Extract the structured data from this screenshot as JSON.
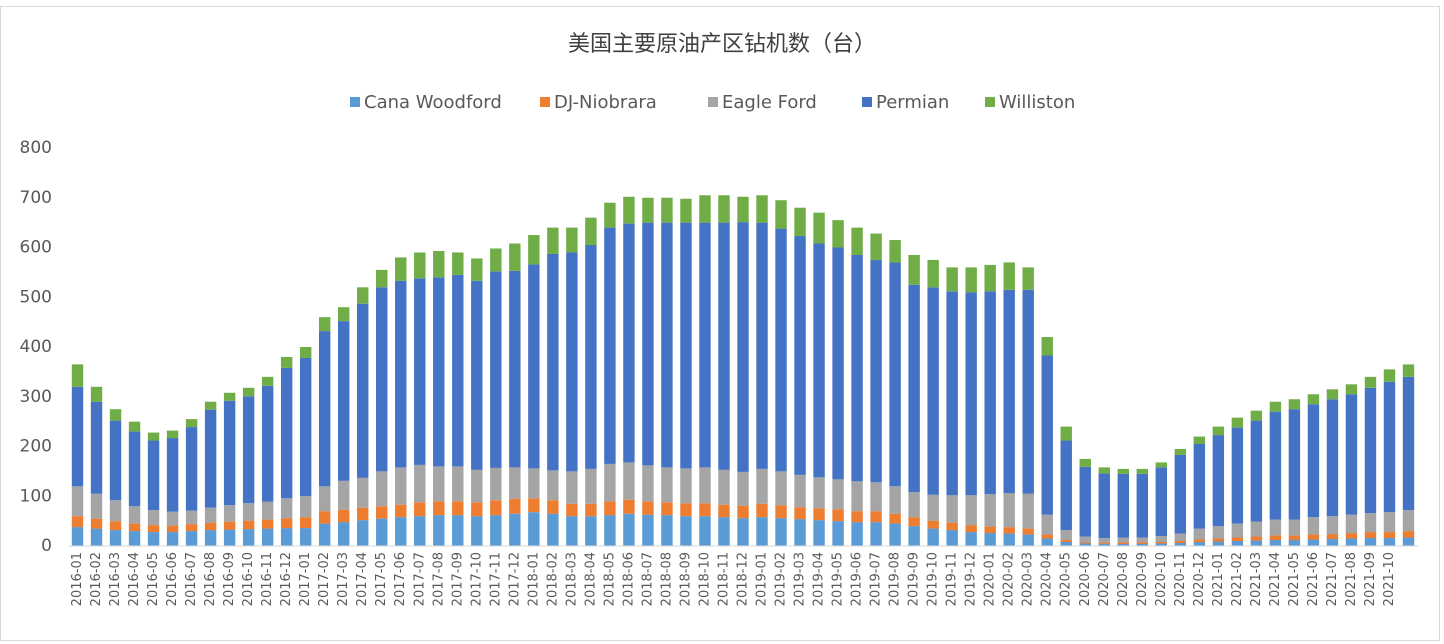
{
  "chart_data": {
    "type": "stacked_bar",
    "title": "美国主要原油产区钻机数（台）",
    "categories": [
      "2016-01",
      "2016-02",
      "2016-03",
      "2016-04",
      "2016-05",
      "2016-06",
      "2016-07",
      "2016-08",
      "2016-09",
      "2016-10",
      "2016-11",
      "2016-12",
      "2017-01",
      "2017-02",
      "2017-03",
      "2017-04",
      "2017-05",
      "2017-06",
      "2017-07",
      "2017-08",
      "2017-09",
      "2017-10",
      "2017-11",
      "2017-12",
      "2018-01",
      "2018-02",
      "2018-03",
      "2018-04",
      "2018-05",
      "2018-06",
      "2018-07",
      "2018-08",
      "2018-09",
      "2018-10",
      "2018-11",
      "2018-12",
      "2019-01",
      "2019-02",
      "2019-03",
      "2019-04",
      "2019-05",
      "2019-06",
      "2019-07",
      "2019-08",
      "2019-09",
      "2019-10",
      "2019-11",
      "2019-12",
      "2020-01",
      "2020-02",
      "2020-03",
      "2020-04",
      "2020-05",
      "2020-06",
      "2020-07",
      "2020-08",
      "2020-09",
      "2020-10",
      "2020-11",
      "2020-12",
      "2021-01",
      "2021-02",
      "2021-03",
      "2021-04",
      "2021-05",
      "2021-06",
      "2021-07",
      "2021-08",
      "2021-09",
      "2021-10",
      null
    ],
    "series": [
      {
        "name": "Cana Woodford",
        "color": "#5b9bd5",
        "values": [
          38,
          35,
          32,
          30,
          28,
          28,
          30,
          32,
          33,
          34,
          35,
          36,
          36,
          45,
          48,
          52,
          55,
          58,
          60,
          62,
          62,
          60,
          62,
          65,
          68,
          65,
          60,
          60,
          62,
          65,
          63,
          62,
          60,
          60,
          58,
          56,
          58,
          56,
          54,
          52,
          50,
          48,
          48,
          45,
          40,
          35,
          32,
          28,
          26,
          25,
          23,
          15,
          8,
          5,
          4,
          4,
          4,
          5,
          6,
          8,
          9,
          10,
          11,
          12,
          12,
          13,
          14,
          15,
          16,
          16,
          17
        ]
      },
      {
        "name": "DJ-Niobrara",
        "color": "#ed7d31",
        "values": [
          22,
          20,
          18,
          15,
          14,
          13,
          14,
          15,
          16,
          17,
          18,
          20,
          22,
          25,
          25,
          25,
          25,
          25,
          28,
          28,
          28,
          28,
          30,
          30,
          28,
          27,
          25,
          25,
          28,
          28,
          27,
          26,
          26,
          26,
          25,
          25,
          27,
          26,
          24,
          24,
          24,
          22,
          22,
          20,
          18,
          16,
          15,
          14,
          13,
          13,
          12,
          8,
          4,
          2,
          2,
          3,
          3,
          3,
          4,
          5,
          6,
          7,
          8,
          9,
          9,
          10,
          10,
          11,
          12,
          12,
          13
        ]
      },
      {
        "name": "Eagle Ford",
        "color": "#a5a5a5",
        "values": [
          60,
          50,
          42,
          35,
          30,
          28,
          27,
          30,
          33,
          35,
          36,
          40,
          42,
          50,
          58,
          60,
          70,
          75,
          75,
          70,
          70,
          65,
          65,
          63,
          60,
          60,
          65,
          70,
          75,
          75,
          72,
          70,
          70,
          72,
          70,
          68,
          70,
          68,
          65,
          62,
          60,
          60,
          58,
          55,
          50,
          52,
          55,
          60,
          65,
          68,
          70,
          40,
          20,
          12,
          10,
          10,
          10,
          12,
          15,
          22,
          25,
          28,
          30,
          32,
          32,
          35,
          36,
          37,
          38,
          40,
          42
        ]
      },
      {
        "name": "Permian",
        "color": "#4472c4",
        "values": [
          200,
          185,
          160,
          150,
          140,
          148,
          168,
          197,
          210,
          215,
          233,
          262,
          278,
          312,
          321,
          350,
          370,
          375,
          375,
          380,
          385,
          380,
          395,
          395,
          410,
          435,
          440,
          450,
          475,
          480,
          488,
          492,
          494,
          492,
          497,
          502,
          495,
          488,
          480,
          470,
          466,
          455,
          447,
          450,
          417,
          417,
          410,
          408,
          408,
          409,
          410,
          320,
          180,
          140,
          130,
          128,
          128,
          138,
          158,
          170,
          183,
          193,
          203,
          217,
          222,
          227,
          235,
          242,
          252,
          262,
          268
        ]
      },
      {
        "name": "Williston",
        "color": "#70ad47",
        "values": [
          45,
          30,
          23,
          20,
          16,
          15,
          16,
          16,
          16,
          17,
          18,
          22,
          22,
          28,
          28,
          33,
          35,
          47,
          52,
          53,
          45,
          45,
          46,
          55,
          59,
          53,
          50,
          55,
          50,
          54,
          50,
          50,
          48,
          55,
          55,
          51,
          55,
          57,
          57,
          62,
          55,
          55,
          53,
          45,
          60,
          55,
          48,
          50,
          53,
          55,
          45,
          37,
          28,
          16,
          12,
          10,
          10,
          10,
          12,
          15,
          17,
          20,
          20,
          20,
          20,
          20,
          20,
          20,
          22,
          25,
          25
        ]
      }
    ],
    "ylim": [
      0,
      800
    ],
    "yticks": [
      0,
      100,
      200,
      300,
      400,
      500,
      600,
      700,
      800
    ],
    "grid": false
  }
}
